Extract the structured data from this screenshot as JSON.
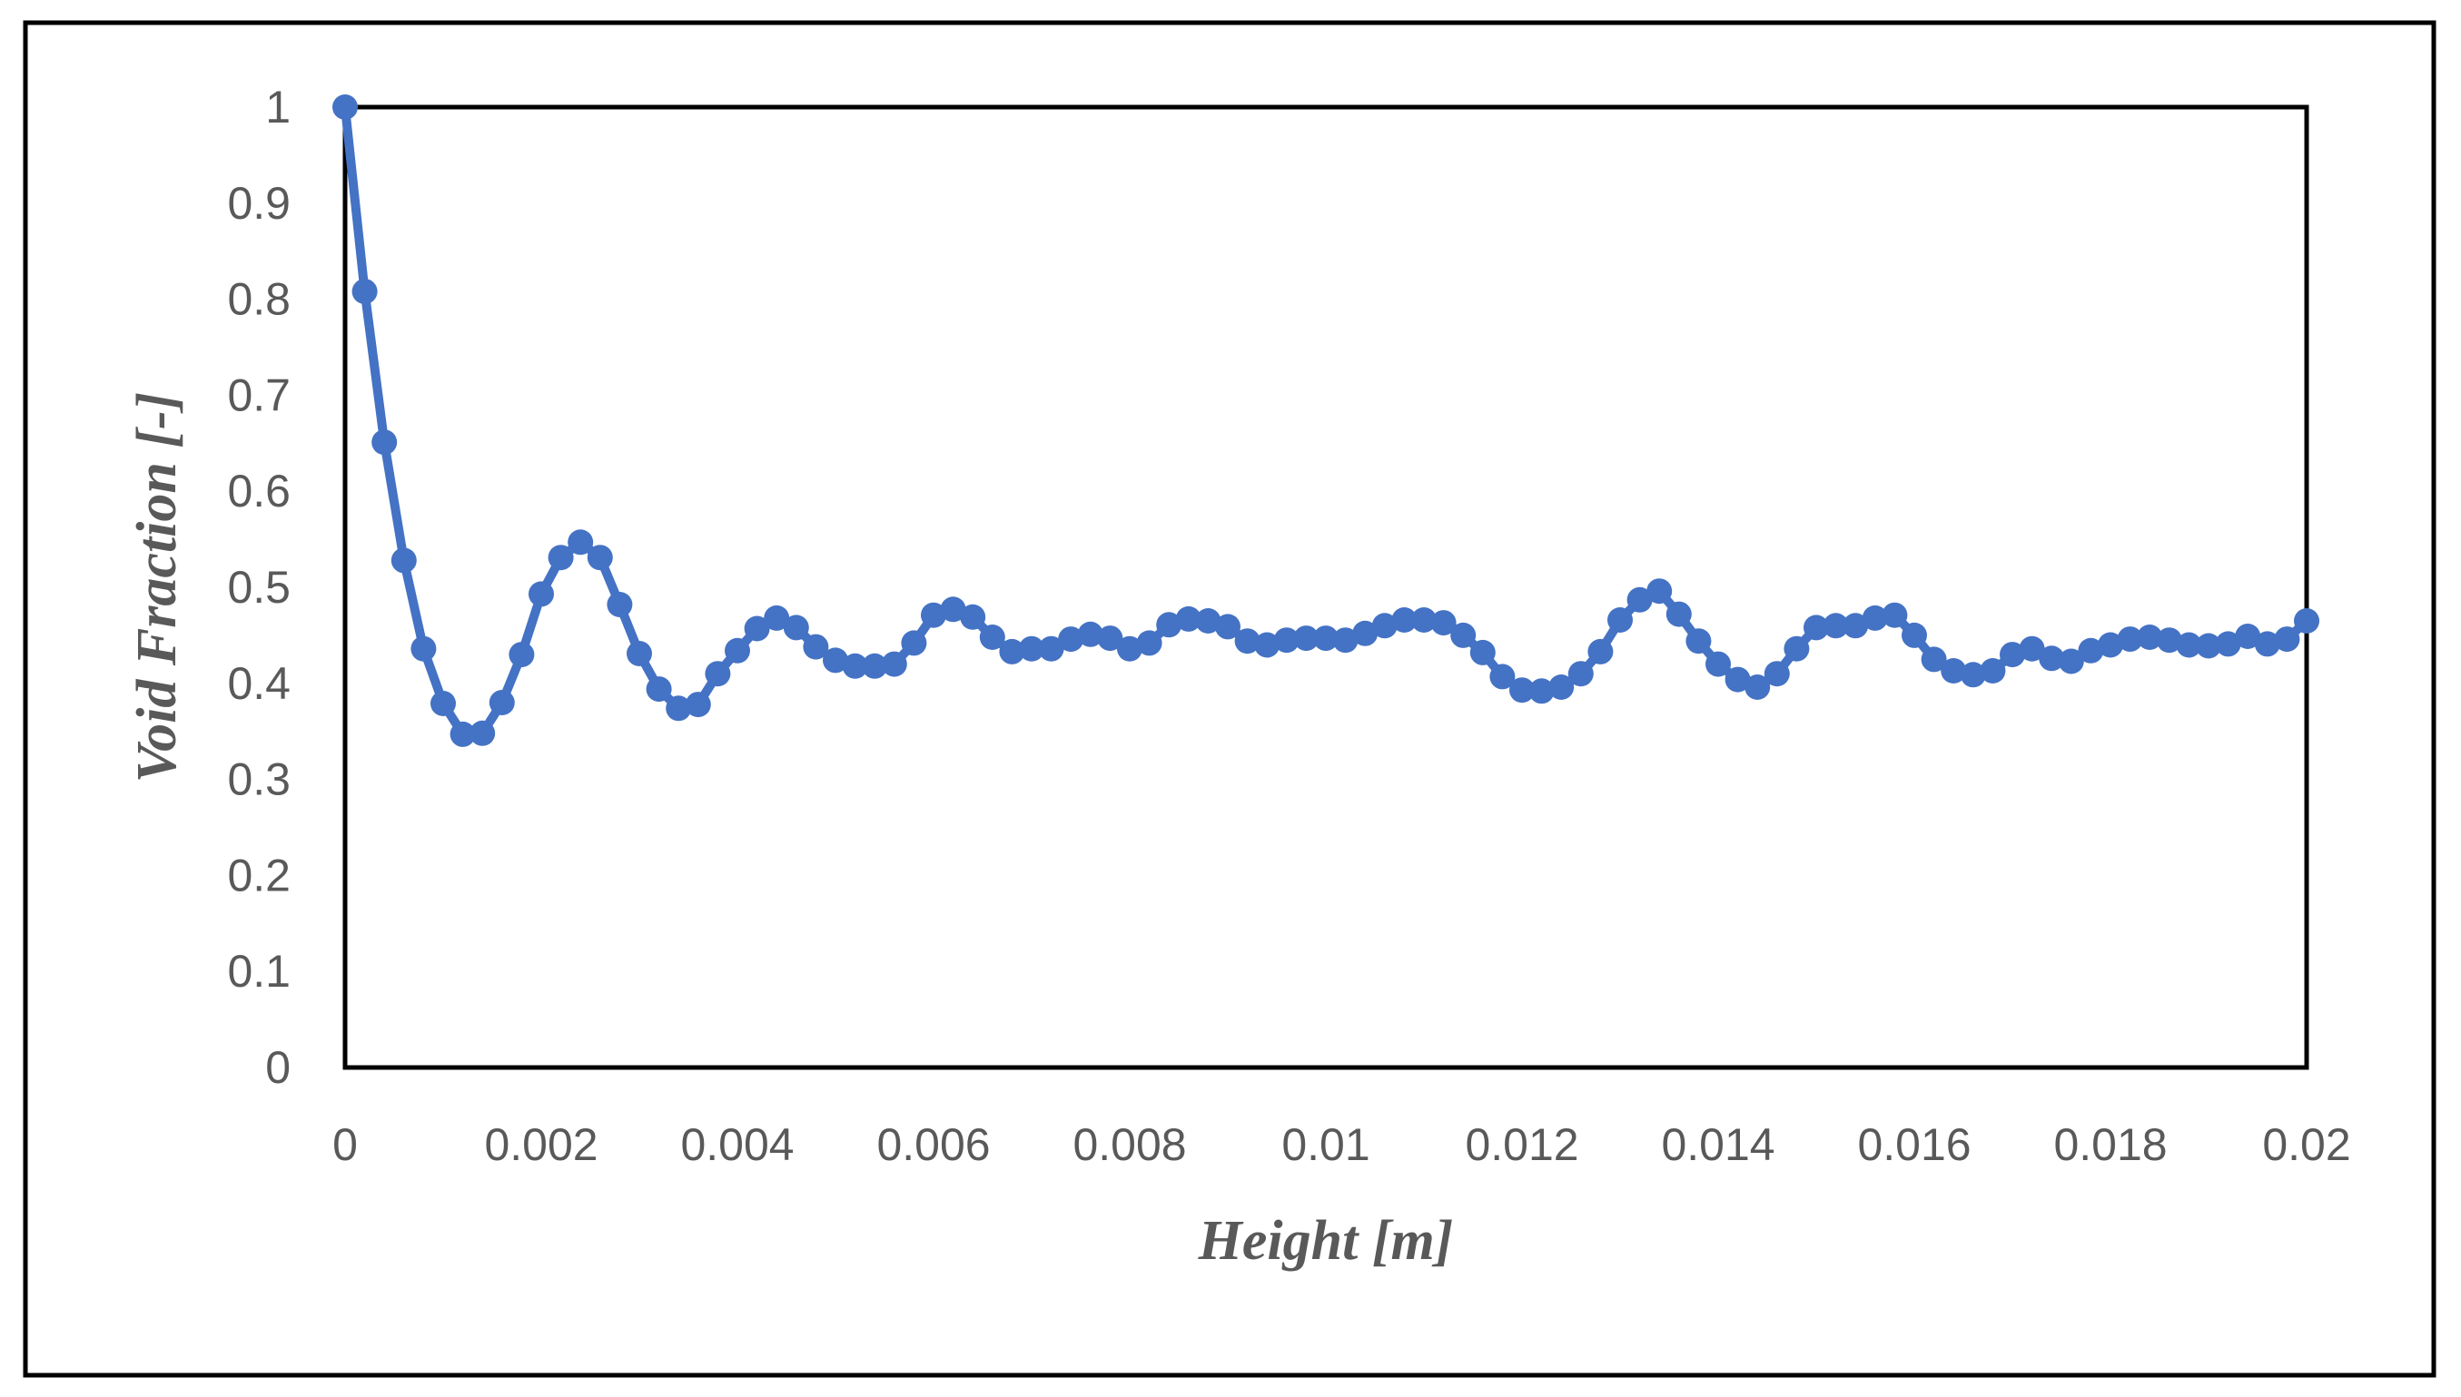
{
  "chart_data": {
    "type": "line",
    "title": "",
    "xlabel": "Height [m]",
    "ylabel": "Void Fraction [-]",
    "xlim": [
      0,
      0.02
    ],
    "ylim": [
      0,
      1
    ],
    "x_ticks": [
      0,
      0.002,
      0.004,
      0.006,
      0.008,
      0.01,
      0.012,
      0.014,
      0.016,
      0.018,
      0.02
    ],
    "x_tick_labels": [
      "0",
      "0.002",
      "0.004",
      "0.006",
      "0.008",
      "0.01",
      "0.012",
      "0.014",
      "0.016",
      "0.018",
      "0.02"
    ],
    "y_ticks": [
      0,
      0.1,
      0.2,
      0.3,
      0.4,
      0.5,
      0.6,
      0.7,
      0.8,
      0.9,
      1
    ],
    "y_tick_labels": [
      "0",
      "0.1",
      "0.2",
      "0.3",
      "0.4",
      "0.5",
      "0.6",
      "0.7",
      "0.8",
      "0.9",
      "1"
    ],
    "grid": false,
    "series_color": "#4472C4",
    "series": [
      {
        "name": "Void Fraction",
        "x": [
          0,
          0.0002,
          0.0004,
          0.0006,
          0.0008,
          0.001,
          0.0012,
          0.0014,
          0.0016,
          0.0018,
          0.002,
          0.0022,
          0.0024,
          0.0026,
          0.0028,
          0.003,
          0.0032,
          0.0034,
          0.0036,
          0.0038,
          0.004,
          0.0042,
          0.0044,
          0.0046,
          0.0048,
          0.005,
          0.0052,
          0.0054,
          0.0056,
          0.0058,
          0.006,
          0.0062,
          0.0064,
          0.0066,
          0.0068,
          0.007,
          0.0072,
          0.0074,
          0.0076,
          0.0078,
          0.008,
          0.0082,
          0.0084,
          0.0086,
          0.0088,
          0.009,
          0.0092,
          0.0094,
          0.0096,
          0.0098,
          0.01,
          0.0102,
          0.0104,
          0.0106,
          0.0108,
          0.011,
          0.0112,
          0.0114,
          0.0116,
          0.0118,
          0.012,
          0.0122,
          0.0124,
          0.0126,
          0.0128,
          0.013,
          0.0132,
          0.0134,
          0.0136,
          0.0138,
          0.014,
          0.0142,
          0.0144,
          0.0146,
          0.0148,
          0.015,
          0.0152,
          0.0154,
          0.0156,
          0.0158,
          0.016,
          0.0162,
          0.0164,
          0.0166,
          0.0168,
          0.017,
          0.0172,
          0.0174,
          0.0176,
          0.0178,
          0.018,
          0.0182,
          0.0184,
          0.0186,
          0.0188,
          0.019,
          0.0192,
          0.0194,
          0.0196,
          0.0198,
          0.02
        ],
        "values": [
          1.0,
          0.808,
          0.651,
          0.528,
          0.436,
          0.379,
          0.347,
          0.348,
          0.38,
          0.43,
          0.493,
          0.531,
          0.547,
          0.531,
          0.482,
          0.431,
          0.394,
          0.374,
          0.378,
          0.41,
          0.434,
          0.457,
          0.468,
          0.458,
          0.438,
          0.424,
          0.418,
          0.418,
          0.42,
          0.442,
          0.471,
          0.477,
          0.469,
          0.448,
          0.433,
          0.436,
          0.436,
          0.446,
          0.451,
          0.447,
          0.436,
          0.442,
          0.461,
          0.467,
          0.465,
          0.459,
          0.444,
          0.44,
          0.445,
          0.447,
          0.447,
          0.445,
          0.452,
          0.46,
          0.466,
          0.466,
          0.463,
          0.45,
          0.432,
          0.407,
          0.393,
          0.392,
          0.396,
          0.41,
          0.433,
          0.466,
          0.487,
          0.496,
          0.472,
          0.444,
          0.42,
          0.404,
          0.396,
          0.41,
          0.436,
          0.458,
          0.46,
          0.46,
          0.468,
          0.471,
          0.45,
          0.425,
          0.413,
          0.409,
          0.413,
          0.43,
          0.436,
          0.426,
          0.423,
          0.434,
          0.44,
          0.446,
          0.448,
          0.445,
          0.44,
          0.439,
          0.441,
          0.449,
          0.441,
          0.446,
          0.465
        ]
      }
    ]
  }
}
